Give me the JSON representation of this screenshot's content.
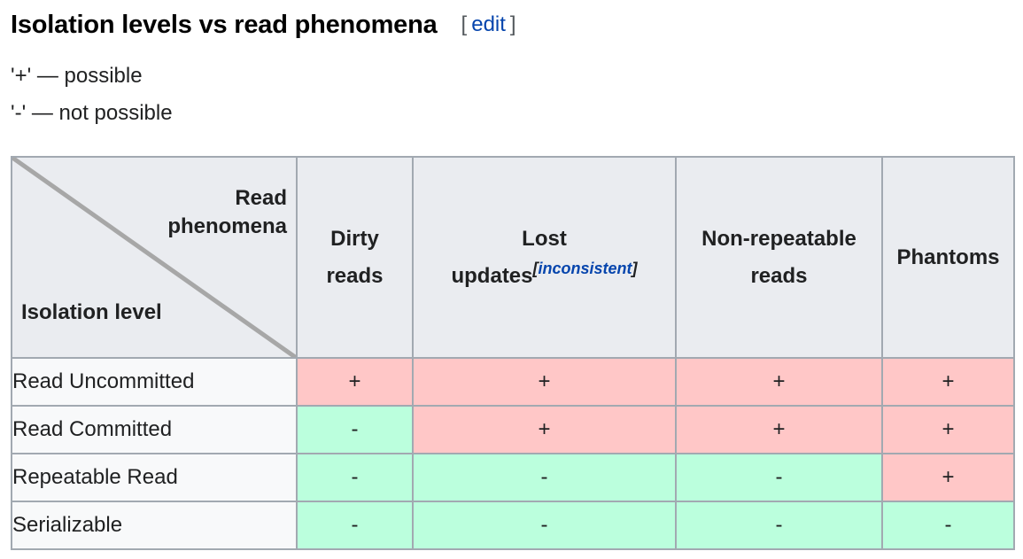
{
  "heading": {
    "title": "Isolation levels vs read phenomena",
    "edit_open": "[",
    "edit_label": "edit",
    "edit_close": "]"
  },
  "legend": [
    "'+' — possible",
    "'-' — not possible"
  ],
  "table": {
    "corner_top_line1": "Read",
    "corner_top_line2": "phenomena",
    "corner_bottom": "Isolation level",
    "columns": [
      {
        "line1": "Dirty",
        "line2": "reads"
      },
      {
        "line1": "Lost",
        "line2": "updates",
        "note_open": "[",
        "note": "inconsistent",
        "note_close": "]"
      },
      {
        "line1": "Non-repeatable",
        "line2": "reads"
      },
      {
        "line1": "Phantoms",
        "line2": ""
      }
    ],
    "rows": [
      {
        "label": "Read Uncommitted",
        "values": [
          "+",
          "+",
          "+",
          "+"
        ]
      },
      {
        "label": "Read Committed",
        "values": [
          "-",
          "+",
          "+",
          "+"
        ]
      },
      {
        "label": "Repeatable Read",
        "values": [
          "-",
          "-",
          "-",
          "+"
        ]
      },
      {
        "label": "Serializable",
        "values": [
          "-",
          "-",
          "-",
          "-"
        ]
      }
    ]
  },
  "colors": {
    "possible": "#ffc7c7",
    "not_possible": "#bbffdd",
    "header_bg": "#eaecf0",
    "link": "#0645ad"
  }
}
